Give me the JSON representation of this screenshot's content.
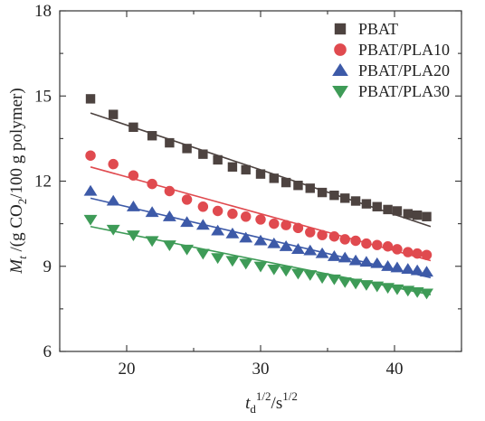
{
  "chart_data": {
    "type": "scatter",
    "xlabel": {
      "base": "t",
      "sub": "d",
      "sup1": "1/2",
      "sep": "/s",
      "sup2": "1/2"
    },
    "ylabel": {
      "base": "M",
      "sub": "t",
      "pre": " /(g CO",
      "sub2": "2",
      "post": "/100 g polymer)"
    },
    "xlim": [
      15,
      45
    ],
    "ylim": [
      6,
      18
    ],
    "xticks": [
      20,
      30,
      40
    ],
    "yticks": [
      6,
      9,
      12,
      15,
      18
    ],
    "legend_position": "top-right",
    "series": [
      {
        "name": "PBAT",
        "marker": "square",
        "color": "#4d4340",
        "fit": [
          [
            17.3,
            14.4
          ],
          [
            42.7,
            10.4
          ]
        ],
        "x": [
          17.3,
          19.0,
          20.5,
          21.9,
          23.2,
          24.5,
          25.7,
          26.8,
          27.9,
          28.9,
          30.0,
          31.0,
          31.9,
          32.8,
          33.7,
          34.6,
          35.5,
          36.3,
          37.1,
          37.9,
          38.7,
          39.5,
          40.2,
          41.0,
          41.7,
          42.4
        ],
        "y": [
          14.9,
          14.35,
          13.9,
          13.6,
          13.35,
          13.15,
          12.95,
          12.75,
          12.5,
          12.4,
          12.25,
          12.1,
          11.95,
          11.85,
          11.75,
          11.6,
          11.5,
          11.4,
          11.3,
          11.2,
          11.1,
          11.0,
          10.95,
          10.85,
          10.8,
          10.75
        ]
      },
      {
        "name": "PBAT/PLA10",
        "marker": "circle",
        "color": "#e04a4f",
        "fit": [
          [
            17.3,
            12.5
          ],
          [
            42.7,
            9.2
          ]
        ],
        "x": [
          17.3,
          19.0,
          20.5,
          21.9,
          23.2,
          24.5,
          25.7,
          26.8,
          27.9,
          28.9,
          30.0,
          31.0,
          31.9,
          32.8,
          33.7,
          34.6,
          35.5,
          36.3,
          37.1,
          37.9,
          38.7,
          39.5,
          40.2,
          41.0,
          41.7,
          42.4
        ],
        "y": [
          12.9,
          12.6,
          12.2,
          11.9,
          11.65,
          11.35,
          11.1,
          10.95,
          10.85,
          10.75,
          10.65,
          10.5,
          10.45,
          10.35,
          10.2,
          10.1,
          10.05,
          9.95,
          9.9,
          9.8,
          9.75,
          9.7,
          9.6,
          9.5,
          9.45,
          9.4
        ]
      },
      {
        "name": "PBAT/PLA20",
        "marker": "triangle-up",
        "color": "#3d5aa8",
        "fit": [
          [
            17.3,
            11.4
          ],
          [
            42.7,
            8.6
          ]
        ],
        "x": [
          17.3,
          19.0,
          20.5,
          21.9,
          23.2,
          24.5,
          25.7,
          26.8,
          27.9,
          28.9,
          30.0,
          31.0,
          31.9,
          32.8,
          33.7,
          34.6,
          35.5,
          36.3,
          37.1,
          37.9,
          38.7,
          39.5,
          40.2,
          41.0,
          41.7,
          42.4
        ],
        "y": [
          11.65,
          11.3,
          11.1,
          10.9,
          10.75,
          10.55,
          10.45,
          10.25,
          10.15,
          10.0,
          9.9,
          9.8,
          9.7,
          9.6,
          9.55,
          9.45,
          9.35,
          9.3,
          9.2,
          9.15,
          9.1,
          9.0,
          8.95,
          8.9,
          8.85,
          8.8
        ]
      },
      {
        "name": "PBAT/PLA30",
        "marker": "triangle-down",
        "color": "#3e9b57",
        "fit": [
          [
            17.3,
            10.4
          ],
          [
            42.7,
            8.0
          ]
        ],
        "x": [
          17.3,
          19.0,
          20.5,
          21.9,
          23.2,
          24.5,
          25.7,
          26.8,
          27.9,
          28.9,
          30.0,
          31.0,
          31.9,
          32.8,
          33.7,
          34.6,
          35.5,
          36.3,
          37.1,
          37.9,
          38.7,
          39.5,
          40.2,
          41.0,
          41.7,
          42.4
        ],
        "y": [
          10.65,
          10.3,
          10.1,
          9.9,
          9.75,
          9.6,
          9.45,
          9.3,
          9.2,
          9.1,
          9.0,
          8.9,
          8.85,
          8.75,
          8.7,
          8.6,
          8.55,
          8.45,
          8.4,
          8.35,
          8.3,
          8.25,
          8.2,
          8.15,
          8.1,
          8.05
        ]
      }
    ]
  }
}
